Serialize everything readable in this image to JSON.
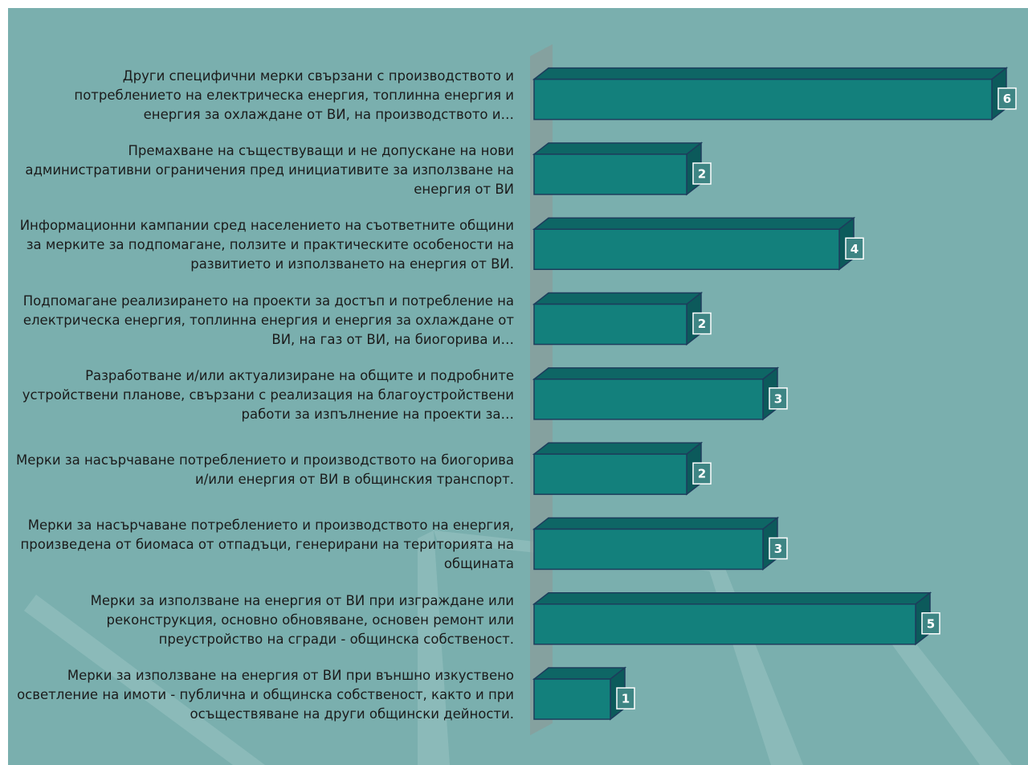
{
  "chart_data": {
    "type": "bar",
    "orientation": "horizontal",
    "color": "#13807c",
    "categories": [
      "Други специфични мерки свързани с производството и потреблението на електрическа енергия, топлинна енергия и енергия за охлаждане от ВИ, на производството и…",
      "Премахване на съществуващи и не допускане на нови административни ограничения  пред инициативите за използване на енергия от ВИ",
      "Информационни кампании сред населението на съответните общини за мерките за подпомагане, ползите и практическите особености на развитието и използването на енергия от ВИ.",
      "Подпомагане реализирането на проекти за достъп и потребление на електрическа енергия, топлинна енергия и енергия за охлаждане от ВИ, на газ от ВИ, на биогорива и…",
      "Разработване и/или актуализиране на общите и подробните устройствени планове, свързани с реализация на благоустройствени работи за изпълнение на проекти за…",
      "Мерки за насърчаване потреблението и производството на биогорива и/или енергия от ВИ в общинския транспорт.",
      "Мерки за насърчаване потреблението и производството на енергия, произведена от биомаса от отпадъци, генерирани на територията на общината",
      "Мерки за използване на енергия от ВИ при изграждане или реконструкция, основно обновяване, основен ремонт или преустройство на сгради - общинска собственост.",
      "Мерки за използване на енергия от ВИ при външно изкуствено осветление на имоти - публична и общинска собственост, както и при осъществяване на други общински дейности."
    ],
    "values": [
      6,
      2,
      4,
      2,
      3,
      2,
      3,
      5,
      1
    ]
  }
}
